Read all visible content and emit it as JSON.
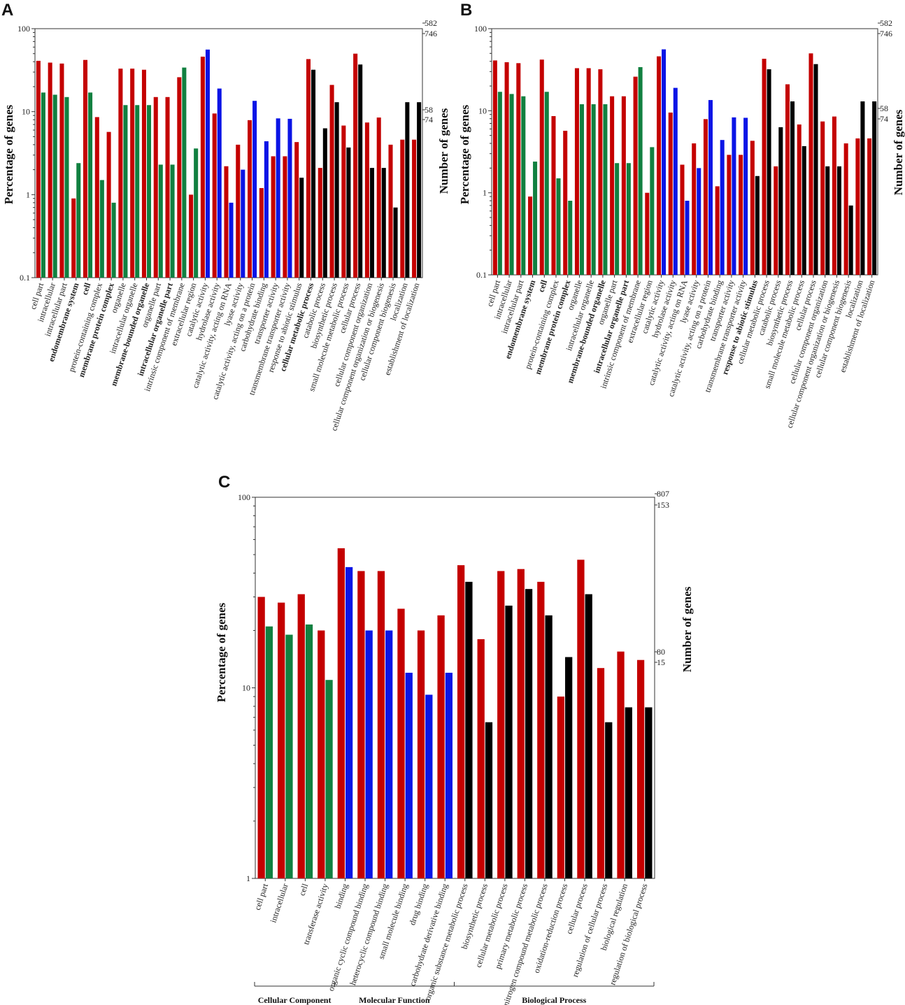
{
  "colors": {
    "pct": "#c40000",
    "cellular_component": "#118040",
    "molecular_function": "#0a14e6",
    "biological_process": "#000000",
    "axis": "#333333"
  },
  "chart_data": [
    {
      "panel": "A",
      "type": "bar",
      "y_scale": "log",
      "ylabel": "Percentage of genes",
      "y2label": "Number of genes",
      "ylim": [
        0.1,
        100
      ],
      "yticks": [
        "0.1",
        "1",
        "10",
        "100"
      ],
      "right_ticks": [
        "582",
        "746",
        "58",
        "74"
      ],
      "categories": [
        "cell part",
        "intracellular",
        "intracellular part",
        "endomembrane system",
        "cell",
        "protein-containing complex",
        "membrane protein complex",
        "organelle",
        "intracellular organelle",
        "membrane-bounded organelle",
        "organelle part",
        "intracellular organelle part",
        "intrinsic component of membrane",
        "extracellular region",
        "catalytic activity",
        "hydrolase activity",
        "catalytic activity, acting on RNA",
        "lyase activity",
        "catalytic activity, acting on a protein",
        "carbohydrate binding",
        "transporter activity",
        "transmembrane transporter activity",
        "response to abiotic stimulus",
        "cellular metabolic process",
        "catabolic process",
        "biosynthetic process",
        "small molecule metabolic process",
        "cellular process",
        "cellular component organization",
        "cellular component organization or biogenesis",
        "cellular component biogenesis",
        "localization",
        "establishment of localization"
      ],
      "groups": [
        "CC",
        "CC",
        "CC",
        "CC",
        "CC",
        "CC",
        "CC",
        "CC",
        "CC",
        "CC",
        "CC",
        "CC",
        "CC",
        "CC",
        "MF",
        "MF",
        "MF",
        "MF",
        "MF",
        "MF",
        "MF",
        "MF",
        "BP",
        "BP",
        "BP",
        "BP",
        "BP",
        "BP",
        "BP",
        "BP",
        "BP",
        "BP",
        "BP"
      ],
      "series": [
        {
          "name": "Percentage of genes (red)",
          "values": [
            41,
            39,
            38,
            0.9,
            42,
            8.6,
            5.7,
            33,
            33,
            32,
            15,
            15,
            26,
            1.0,
            46,
            9.5,
            2.2,
            4.0,
            7.9,
            1.2,
            2.9,
            2.9,
            4.3,
            43,
            2.1,
            21,
            6.8,
            50,
            7.4,
            8.5,
            4.0,
            4.6,
            4.6
          ]
        },
        {
          "name": "Percentage of genes (category color)",
          "values": [
            17,
            16,
            15,
            2.4,
            17,
            1.5,
            0.8,
            12,
            12,
            12,
            2.3,
            2.3,
            34,
            3.6,
            56,
            19,
            0.8,
            2.0,
            13.5,
            4.4,
            8.3,
            8.2,
            1.6,
            32,
            6.3,
            13,
            3.7,
            37,
            2.1,
            2.1,
            0.7,
            13,
            13
          ]
        }
      ]
    },
    {
      "panel": "B",
      "type": "bar",
      "y_scale": "log",
      "ylabel": "Percentage of genes",
      "y2label": "Number of genes",
      "ylim": [
        0.1,
        100
      ],
      "yticks": [
        "0.1",
        "1",
        "10",
        "100"
      ],
      "right_ticks": [
        "582",
        "746",
        "58",
        "74"
      ],
      "categories": [
        "cell part",
        "intracellular",
        "intracellular part",
        "endomembrane system",
        "cell",
        "protein-containing complex",
        "membrane protein complex",
        "organelle",
        "intracellular organelle",
        "membrane-bounded organelle",
        "organelle part",
        "intracellular organelle part",
        "intrinsic component of membrane",
        "extracellular region",
        "catalytic activity",
        "hydrolase activity",
        "catalytic activity, acting on RNA",
        "lyase activity",
        "catalytic activity, acting on a protein",
        "carbohydrate binding",
        "transporter activity",
        "transmembrane transporter activity",
        "response to abiotic stimulus",
        "cellular metabolic process",
        "catabolic process",
        "biosynthetic process",
        "small molecule metabolic process",
        "cellular process",
        "cellular component organization",
        "cellular component organization or biogenesis",
        "cellular component biogenesis",
        "localization",
        "establishment of localization"
      ],
      "groups": [
        "CC",
        "CC",
        "CC",
        "CC",
        "CC",
        "CC",
        "CC",
        "CC",
        "CC",
        "CC",
        "CC",
        "CC",
        "CC",
        "CC",
        "MF",
        "MF",
        "MF",
        "MF",
        "MF",
        "MF",
        "MF",
        "MF",
        "BP",
        "BP",
        "BP",
        "BP",
        "BP",
        "BP",
        "BP",
        "BP",
        "BP",
        "BP",
        "BP"
      ],
      "series": [
        {
          "name": "Percentage of genes (red)",
          "values": [
            41,
            39,
            38,
            0.9,
            42,
            8.6,
            5.7,
            33,
            33,
            32,
            15,
            15,
            26,
            1.0,
            46,
            9.5,
            2.2,
            4.0,
            7.9,
            1.2,
            2.9,
            2.9,
            4.3,
            43,
            2.1,
            21,
            6.8,
            50,
            7.4,
            8.5,
            4.0,
            4.6,
            4.6
          ]
        },
        {
          "name": "Percentage of genes (category color)",
          "values": [
            17,
            16,
            15,
            2.4,
            17,
            1.5,
            0.8,
            12,
            12,
            12,
            2.3,
            2.3,
            34,
            3.6,
            56,
            19,
            0.8,
            2.0,
            13.5,
            4.4,
            8.3,
            8.2,
            1.6,
            32,
            6.3,
            13,
            3.7,
            37,
            2.1,
            2.1,
            0.7,
            13,
            13
          ]
        }
      ]
    },
    {
      "panel": "C",
      "type": "bar",
      "y_scale": "log",
      "ylabel": "Percentage of genes",
      "y2label": "Number of genes",
      "ylim": [
        1,
        100
      ],
      "yticks": [
        "1",
        "10",
        "100"
      ],
      "right_ticks": [
        "807",
        "153",
        "80",
        "15"
      ],
      "categories": [
        "cell part",
        "intracellular",
        "cell",
        "transferase activity",
        "binding",
        "organic cyclic compound binding",
        "heterocyclic compound binding",
        "small molecule binding",
        "drug binding",
        "carbohydrate derivative binding",
        "organic substance metabolic process",
        "biosynthetic process",
        "cellular metabolic process",
        "primary metabolic process",
        "nitrogen compound metabolic process",
        "oxidation-reduction process",
        "cellular process",
        "regulation of cellular process",
        "biological regulation",
        "regulation of biological process"
      ],
      "groups": [
        "CC",
        "CC",
        "CC",
        "CC",
        "MF",
        "MF",
        "MF",
        "MF",
        "MF",
        "MF",
        "BP",
        "BP",
        "BP",
        "BP",
        "BP",
        "BP",
        "BP",
        "BP",
        "BP",
        "BP"
      ],
      "series": [
        {
          "name": "Percentage of genes (red)",
          "values": [
            30,
            28,
            31,
            20,
            54,
            41,
            41,
            26,
            20,
            24,
            44,
            18,
            41,
            42,
            36,
            9,
            47,
            12.7,
            15.5,
            14
          ]
        },
        {
          "name": "Percentage of genes (category color)",
          "values": [
            21,
            19,
            21.5,
            11,
            43,
            20,
            20,
            12,
            9.2,
            12,
            36,
            6.6,
            27,
            33,
            24,
            14.5,
            31,
            6.6,
            7.9,
            7.9
          ]
        }
      ],
      "group_brackets": [
        {
          "label": "Cellular Component",
          "from": 0,
          "to": 3
        },
        {
          "label": "Molecular Function",
          "from": 4,
          "to": 9
        },
        {
          "label": "Biological Process",
          "from": 10,
          "to": 19
        }
      ]
    }
  ]
}
